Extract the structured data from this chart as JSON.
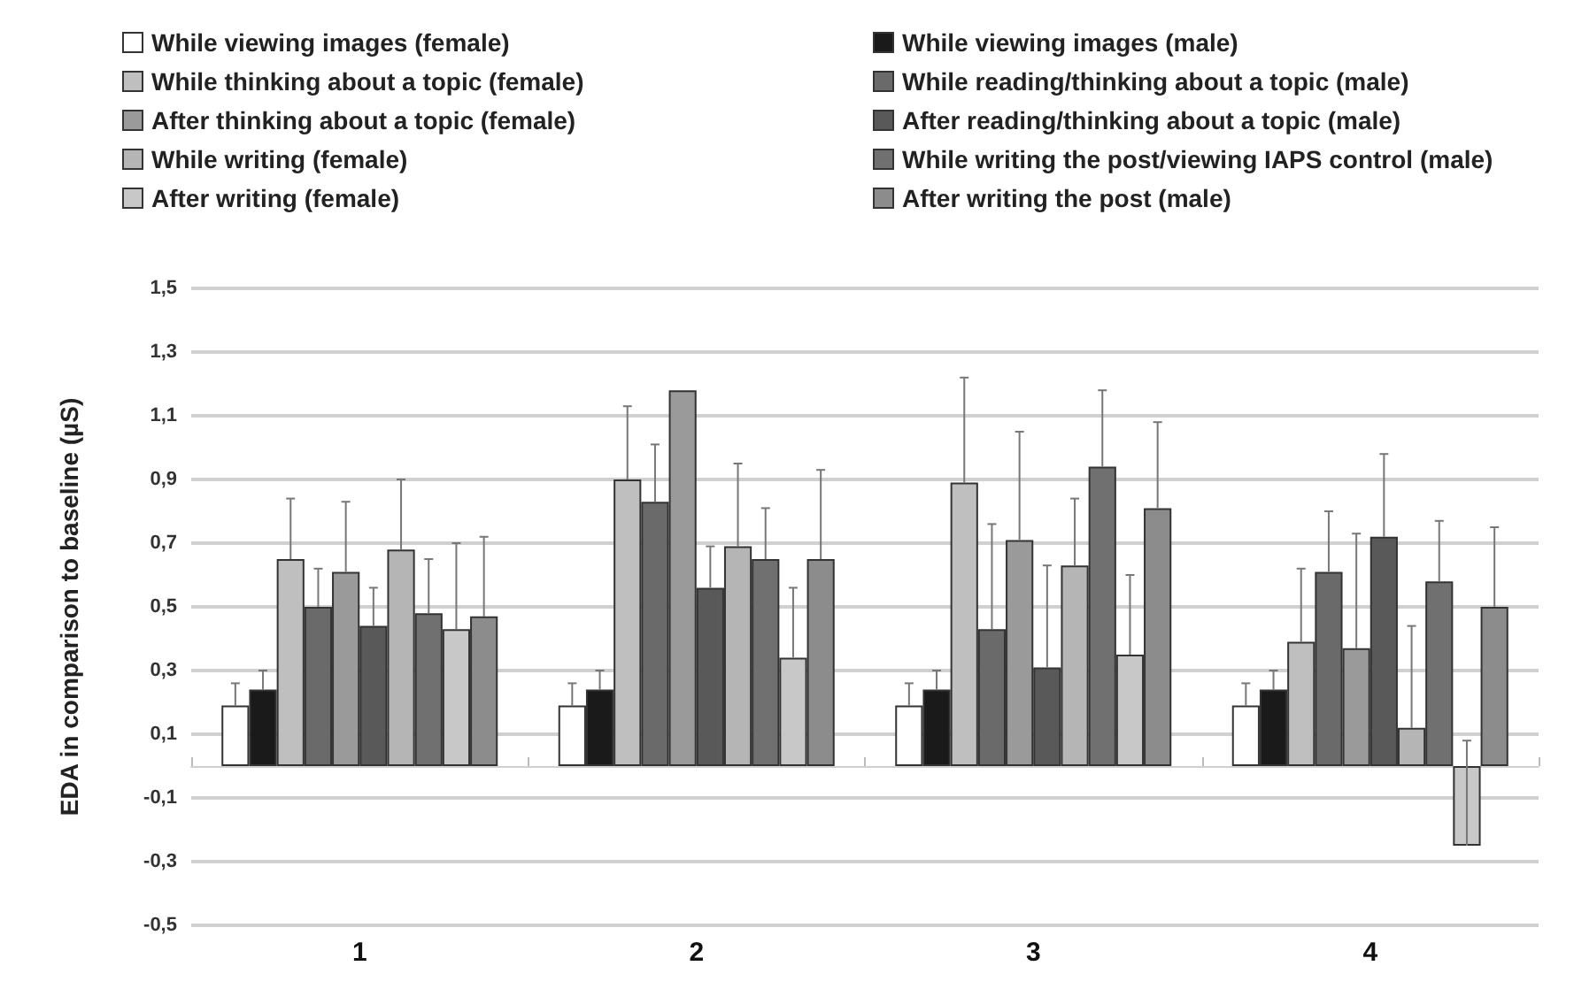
{
  "chart_data": {
    "type": "bar",
    "ylabel": "EDA in comparison to baseline (µS)",
    "categories": [
      "1",
      "2",
      "3",
      "4"
    ],
    "series": [
      {
        "name": "While viewing images (female)",
        "color": "#ffffff",
        "values": [
          0.19,
          0.19,
          0.19,
          0.19
        ],
        "errors": [
          [
            0.19,
            0.26
          ],
          [
            0.19,
            0.26
          ],
          [
            0.19,
            0.26
          ],
          [
            0.19,
            0.26
          ]
        ]
      },
      {
        "name": "While viewing images (male)",
        "color": "#1a1a1a",
        "values": [
          0.24,
          0.24,
          0.24,
          0.24
        ],
        "errors": [
          [
            0.24,
            0.3
          ],
          [
            0.24,
            0.3
          ],
          [
            0.24,
            0.3
          ],
          [
            0.24,
            0.3
          ]
        ]
      },
      {
        "name": "While thinking about a topic (female)",
        "color": "#bfbfbf",
        "values": [
          0.65,
          0.9,
          0.89,
          0.39
        ],
        "errors": [
          [
            0.65,
            0.84
          ],
          [
            0.9,
            1.13
          ],
          [
            0.89,
            1.22
          ],
          [
            0.39,
            0.62
          ]
        ]
      },
      {
        "name": "While reading/thinking about a topic (male)",
        "color": "#6a6a6a",
        "values": [
          0.5,
          0.83,
          0.43,
          0.61
        ],
        "errors": [
          [
            0.5,
            0.62
          ],
          [
            0.83,
            1.01
          ],
          [
            0.43,
            0.76
          ],
          [
            0.61,
            0.8
          ]
        ]
      },
      {
        "name": "After thinking about a topic (female)",
        "color": "#9a9a9a",
        "values": [
          0.61,
          1.18,
          0.71,
          0.37
        ],
        "errors": [
          [
            0.61,
            0.83
          ],
          null,
          [
            0.71,
            1.05
          ],
          [
            0.37,
            0.73
          ]
        ]
      },
      {
        "name": "After reading/thinking about a topic (male)",
        "color": "#595959",
        "values": [
          0.44,
          0.56,
          0.31,
          0.72
        ],
        "errors": [
          [
            0.44,
            0.56
          ],
          [
            0.56,
            0.69
          ],
          [
            0.31,
            0.63
          ],
          [
            0.72,
            0.98
          ]
        ]
      },
      {
        "name": "While writing (female)",
        "color": "#b5b5b5",
        "values": [
          0.68,
          0.69,
          0.63,
          0.12
        ],
        "errors": [
          [
            0.68,
            0.9
          ],
          [
            0.69,
            0.95
          ],
          [
            0.63,
            0.84
          ],
          [
            0.12,
            0.44
          ]
        ]
      },
      {
        "name": "While writing the post/viewing IAPS control (male)",
        "color": "#707070",
        "values": [
          0.48,
          0.65,
          0.94,
          0.58
        ],
        "errors": [
          [
            0.48,
            0.65
          ],
          [
            0.65,
            0.81
          ],
          [
            0.94,
            1.18
          ],
          [
            0.58,
            0.77
          ]
        ]
      },
      {
        "name": "After writing (female)",
        "color": "#c8c8c8",
        "values": [
          0.43,
          0.34,
          0.35,
          -0.25
        ],
        "errors": [
          [
            0.43,
            0.7
          ],
          [
            0.34,
            0.56
          ],
          [
            0.35,
            0.6
          ],
          [
            -0.25,
            0.08
          ]
        ]
      },
      {
        "name": "After writing the post (male)",
        "color": "#8c8c8c",
        "values": [
          0.47,
          0.65,
          0.81,
          0.5
        ],
        "errors": [
          [
            0.47,
            0.72
          ],
          [
            0.65,
            0.93
          ],
          [
            0.81,
            1.08
          ],
          [
            0.5,
            0.75
          ]
        ]
      }
    ],
    "ylim": [
      -0.5,
      1.5
    ],
    "yticks": [
      {
        "value": -0.5,
        "label": "-0,5"
      },
      {
        "value": -0.3,
        "label": "-0,3"
      },
      {
        "value": -0.1,
        "label": "-0,1"
      },
      {
        "value": 0.1,
        "label": "0,1"
      },
      {
        "value": 0.3,
        "label": "0,3"
      },
      {
        "value": 0.5,
        "label": "0,5"
      },
      {
        "value": 0.7,
        "label": "0,7"
      },
      {
        "value": 0.9,
        "label": "0,9"
      },
      {
        "value": 1.1,
        "label": "1,1"
      },
      {
        "value": 1.3,
        "label": "1,3"
      },
      {
        "value": 1.5,
        "label": "1,5"
      }
    ],
    "grid": "y",
    "legend": "top"
  }
}
